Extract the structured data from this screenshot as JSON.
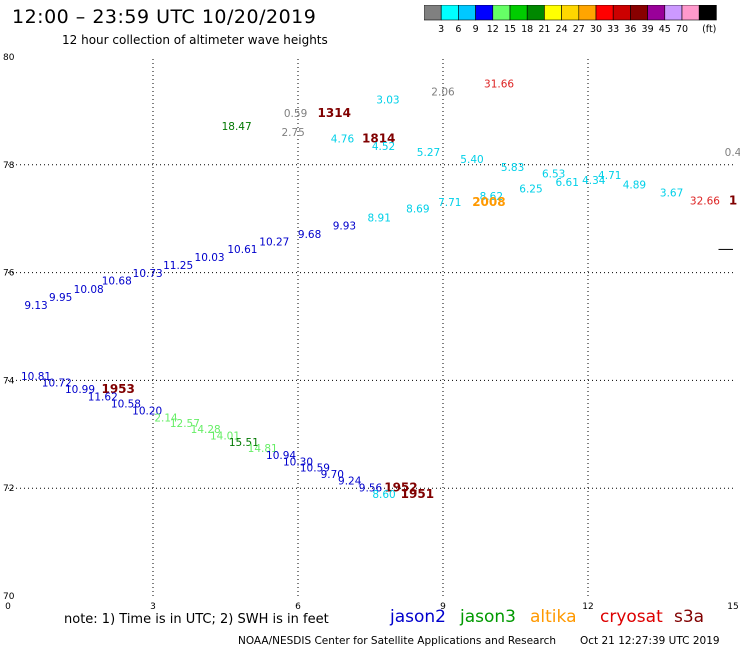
{
  "header": {
    "title": "12:00 – 23:59 UTC 10/20/2019",
    "subtitle": "12 hour collection of altimeter wave heights"
  },
  "colorbar": {
    "colors": [
      "#808080",
      "#00ffff",
      "#00c8ff",
      "#0000ff",
      "#66ff66",
      "#00cc00",
      "#008800",
      "#ffff00",
      "#ffd700",
      "#ffa500",
      "#ff0000",
      "#cc0000",
      "#880000",
      "#990099",
      "#cc99ff",
      "#ff99cc",
      "#000000"
    ],
    "labels": [
      "3",
      "6",
      "9",
      "12",
      "15",
      "18",
      "21",
      "24",
      "27",
      "30",
      "33",
      "36",
      "39",
      "45",
      "70"
    ],
    "unit": "(ft)"
  },
  "note": "note:  1) Time is in UTC;  2) SWH is in feet",
  "satellites": [
    {
      "name": "jason2",
      "color": "#0000cc"
    },
    {
      "name": "jason3",
      "color": "#009900"
    },
    {
      "name": "altika",
      "color": "#ff9900"
    },
    {
      "name": "cryosat",
      "color": "#dd0000"
    },
    {
      "name": "s3a",
      "color": "#800000"
    }
  ],
  "footer": {
    "credit": "NOAA/NESDIS Center for Satellite Applications and Research",
    "timestamp": "Oct 21 12:27:39 UTC 2019"
  },
  "chart_data": {
    "type": "scatter",
    "xlim": [
      0,
      15
    ],
    "ylim": [
      70,
      80
    ],
    "x_ticks": [
      "0",
      "3",
      "6",
      "9",
      "12",
      "15"
    ],
    "y_ticks": [
      "70",
      "72",
      "74",
      "76",
      "78",
      "80"
    ],
    "y_tick_values": [
      70,
      72,
      74,
      76,
      78,
      80
    ],
    "labels": [
      {
        "text": "31.66",
        "x": 10.16,
        "y": 79.51,
        "color": "#dd2222"
      },
      {
        "text": "2.06",
        "x": 9.0,
        "y": 79.36,
        "color": "#808080"
      },
      {
        "text": "3.03",
        "x": 7.86,
        "y": 79.21,
        "color": "#00d0e8"
      },
      {
        "text": "0.59",
        "x": 5.95,
        "y": 78.96,
        "color": "#808080"
      },
      {
        "text": "1314",
        "x": 6.75,
        "y": 78.96,
        "color": "#800000",
        "big": true
      },
      {
        "text": "18.47",
        "x": 4.73,
        "y": 78.72,
        "color": "#007700"
      },
      {
        "text": "2.75",
        "x": 5.9,
        "y": 78.61,
        "color": "#808080"
      },
      {
        "text": "4.76",
        "x": 6.92,
        "y": 78.49,
        "color": "#00d0e8"
      },
      {
        "text": "1814",
        "x": 7.67,
        "y": 78.49,
        "color": "#800000",
        "big": true
      },
      {
        "text": "4.52",
        "x": 7.77,
        "y": 78.35,
        "color": "#00d0e8"
      },
      {
        "text": "5.27",
        "x": 8.7,
        "y": 78.24,
        "color": "#00d0e8"
      },
      {
        "text": "0.4",
        "x": 15.0,
        "y": 78.24,
        "color": "#808080"
      },
      {
        "text": "5.40",
        "x": 9.6,
        "y": 78.11,
        "color": "#00d0e8"
      },
      {
        "text": "5.83",
        "x": 10.44,
        "y": 77.96,
        "color": "#00d0e8"
      },
      {
        "text": "6.53",
        "x": 11.29,
        "y": 77.84,
        "color": "#00d0e8"
      },
      {
        "text": "4.71",
        "x": 12.45,
        "y": 77.81,
        "color": "#00d0e8"
      },
      {
        "text": "6.61",
        "x": 11.57,
        "y": 77.68,
        "color": "#00d0e8"
      },
      {
        "text": "4.34",
        "x": 12.12,
        "y": 77.72,
        "color": "#00d0e8"
      },
      {
        "text": "4.89",
        "x": 12.96,
        "y": 77.63,
        "color": "#00d0e8"
      },
      {
        "text": "6.25",
        "x": 10.82,
        "y": 77.56,
        "color": "#00d0e8"
      },
      {
        "text": "8.62",
        "x": 10.0,
        "y": 77.42,
        "color": "#00d0e8"
      },
      {
        "text": "3.67",
        "x": 13.73,
        "y": 77.49,
        "color": "#00d0e8"
      },
      {
        "text": "32.66",
        "x": 14.42,
        "y": 77.34,
        "color": "#dd2222"
      },
      {
        "text": "7.71",
        "x": 9.14,
        "y": 77.31,
        "color": "#00d0e8"
      },
      {
        "text": "2008",
        "x": 9.95,
        "y": 77.31,
        "color": "#ff9900",
        "big": true
      },
      {
        "text": "8.69",
        "x": 8.48,
        "y": 77.19,
        "color": "#00d0e8"
      },
      {
        "text": "8.91",
        "x": 7.68,
        "y": 77.02,
        "color": "#00d0e8"
      },
      {
        "text": "9.93",
        "x": 6.96,
        "y": 76.87,
        "color": "#0000cc"
      },
      {
        "text": "9.68",
        "x": 6.24,
        "y": 76.72,
        "color": "#0000cc"
      },
      {
        "text": "10.27",
        "x": 5.51,
        "y": 76.58,
        "color": "#0000cc"
      },
      {
        "text": "10.61",
        "x": 4.85,
        "y": 76.44,
        "color": "#0000cc"
      },
      {
        "text": "10.03",
        "x": 4.17,
        "y": 76.29,
        "color": "#0000cc"
      },
      {
        "text": "11.25",
        "x": 3.52,
        "y": 76.14,
        "color": "#0000cc"
      },
      {
        "text": "10.73",
        "x": 2.89,
        "y": 75.99,
        "color": "#0000cc"
      },
      {
        "text": "10.68",
        "x": 2.25,
        "y": 75.85,
        "color": "#0000cc"
      },
      {
        "text": "10.08",
        "x": 1.67,
        "y": 75.7,
        "color": "#0000cc"
      },
      {
        "text": "9.95",
        "x": 1.09,
        "y": 75.55,
        "color": "#0000cc"
      },
      {
        "text": "9.13",
        "x": 0.58,
        "y": 75.4,
        "color": "#0000cc"
      },
      {
        "text": "10.81",
        "x": 0.58,
        "y": 74.08,
        "color": "#0000cc"
      },
      {
        "text": "10.72",
        "x": 1.01,
        "y": 73.96,
        "color": "#0000cc"
      },
      {
        "text": "10.99",
        "x": 1.49,
        "y": 73.84,
        "color": "#0000cc"
      },
      {
        "text": "1953",
        "x": 2.28,
        "y": 73.84,
        "color": "#800000",
        "big": true
      },
      {
        "text": "11.62",
        "x": 1.96,
        "y": 73.7,
        "color": "#0000cc"
      },
      {
        "text": "10.58",
        "x": 2.44,
        "y": 73.57,
        "color": "#0000cc"
      },
      {
        "text": "10.20",
        "x": 2.88,
        "y": 73.44,
        "color": "#0000cc"
      },
      {
        "text": "2.14",
        "x": 3.27,
        "y": 73.31,
        "color": "#66ee66"
      },
      {
        "text": "12.57",
        "x": 3.66,
        "y": 73.21,
        "color": "#66ee66"
      },
      {
        "text": "14.28",
        "x": 4.09,
        "y": 73.1,
        "color": "#66ee66"
      },
      {
        "text": "14.01",
        "x": 4.49,
        "y": 72.98,
        "color": "#66ee66"
      },
      {
        "text": "15.51",
        "x": 4.88,
        "y": 72.86,
        "color": "#007700"
      },
      {
        "text": "14.81",
        "x": 5.27,
        "y": 72.75,
        "color": "#66ee66"
      },
      {
        "text": "10.94",
        "x": 5.65,
        "y": 72.62,
        "color": "#0000cc"
      },
      {
        "text": "10.30",
        "x": 6.0,
        "y": 72.5,
        "color": "#0000cc"
      },
      {
        "text": "10.59",
        "x": 6.35,
        "y": 72.38,
        "color": "#0000cc"
      },
      {
        "text": "9.70",
        "x": 6.71,
        "y": 72.26,
        "color": "#0000cc"
      },
      {
        "text": "9.24",
        "x": 7.07,
        "y": 72.14,
        "color": "#0000cc"
      },
      {
        "text": "9.56",
        "x": 7.5,
        "y": 72.01,
        "color": "#0000cc"
      },
      {
        "text": "1952",
        "x": 8.13,
        "y": 72.01,
        "color": "#800000",
        "big": true
      },
      {
        "text": "8.60",
        "x": 7.78,
        "y": 71.89,
        "color": "#00d0e8"
      },
      {
        "text": "1951",
        "x": 8.47,
        "y": 71.89,
        "color": "#800000",
        "big": true
      },
      {
        "text": "1",
        "x": 15.0,
        "y": 77.34,
        "color": "#800000",
        "big": true
      }
    ]
  }
}
